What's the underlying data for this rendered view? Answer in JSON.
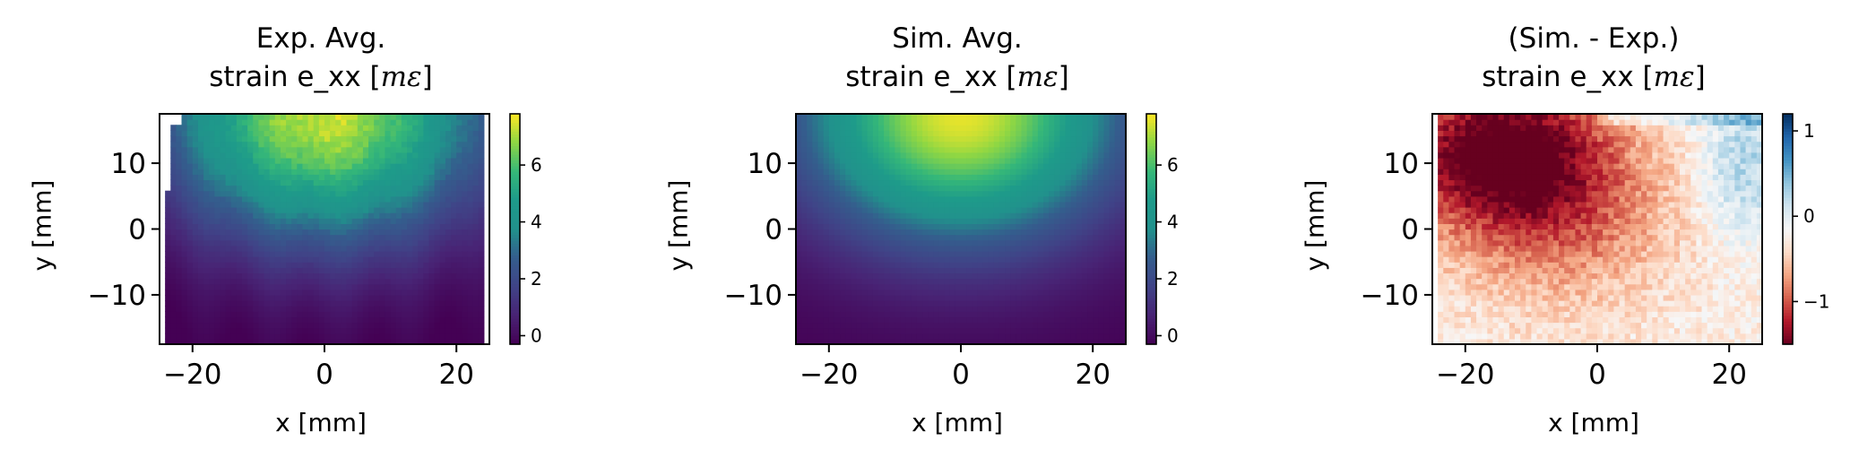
{
  "chart_data": [
    {
      "type": "heatmap",
      "title": "Exp. Avg.",
      "subtitle_prefix": "strain e_xx [",
      "subtitle_unit": "mε",
      "subtitle_suffix": "]",
      "xlabel": "x [mm]",
      "ylabel": "y [mm]",
      "xlim": [
        -25,
        25
      ],
      "ylim": [
        -17.5,
        17.5
      ],
      "xticks": [
        -20,
        0,
        20
      ],
      "yticks": [
        -10,
        0,
        10
      ],
      "xtick_labels": [
        "−20",
        "0",
        "20"
      ],
      "ytick_labels": [
        "−10",
        "0",
        "10"
      ],
      "colormap": "viridis",
      "clim": [
        -0.3,
        7.8
      ],
      "colorbar_ticks": [
        0,
        2,
        4,
        6
      ],
      "colorbar_tick_labels": [
        "0",
        "2",
        "4",
        "6"
      ],
      "field": "experimental, peak near (-2, 15), masked corners",
      "peak_value": 7.5,
      "min_value": -0.2
    },
    {
      "type": "heatmap",
      "title": "Sim. Avg.",
      "subtitle_prefix": "strain e_xx [",
      "subtitle_unit": "mε",
      "subtitle_suffix": "]",
      "xlabel": "x [mm]",
      "ylabel": "y [mm]",
      "xlim": [
        -25,
        25
      ],
      "ylim": [
        -17.5,
        17.5
      ],
      "xticks": [
        -20,
        0,
        20
      ],
      "yticks": [
        -10,
        0,
        10
      ],
      "xtick_labels": [
        "−20",
        "0",
        "20"
      ],
      "ytick_labels": [
        "−10",
        "0",
        "10"
      ],
      "colormap": "viridis",
      "clim": [
        -0.3,
        7.8
      ],
      "colorbar_ticks": [
        0,
        2,
        4,
        6
      ],
      "colorbar_tick_labels": [
        "0",
        "2",
        "4",
        "6"
      ],
      "peak_value": 7.6,
      "min_value": -0.3
    },
    {
      "type": "heatmap",
      "title": "(Sim. - Exp.)",
      "subtitle_prefix": "strain e_xx [",
      "subtitle_unit": "mε",
      "subtitle_suffix": "]",
      "xlabel": "x [mm]",
      "ylabel": "y [mm]",
      "xlim": [
        -25,
        25
      ],
      "ylim": [
        -17.5,
        17.5
      ],
      "xticks": [
        -20,
        0,
        20
      ],
      "yticks": [
        -10,
        0,
        10
      ],
      "xtick_labels": [
        "−20",
        "0",
        "20"
      ],
      "ytick_labels": [
        "−10",
        "0",
        "10"
      ],
      "colormap": "RdBu",
      "clim": [
        -1.5,
        1.2
      ],
      "colorbar_ticks": [
        -1,
        0,
        1
      ],
      "colorbar_tick_labels": [
        "−1",
        "0",
        "1"
      ],
      "min_value": -1.4,
      "max_value": 0.8
    }
  ]
}
